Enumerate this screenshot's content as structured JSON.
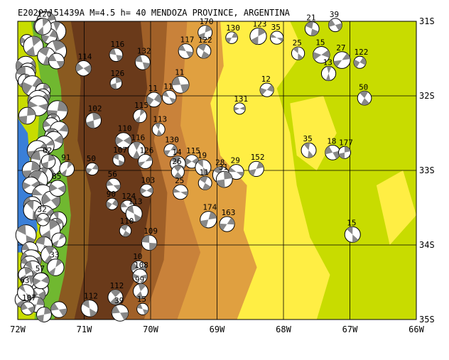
{
  "title": "E20201151439A  M=4.5  h= 40 MENDOZA PROVINCE, ARGENTINA",
  "map": {
    "lon_range": [
      -72,
      -66
    ],
    "lat_range": [
      -35,
      -31
    ],
    "lon_ticks": [
      "72W",
      "71W",
      "70W",
      "69W",
      "68W",
      "67W",
      "66W"
    ],
    "lat_ticks": [
      "31S",
      "32S",
      "33S",
      "34S",
      "35S"
    ],
    "grid": true,
    "colors": {
      "ocean": "#3a7fd8",
      "coast_green": "#70b830",
      "lowland": "#c8dc00",
      "plain": "#ffee44",
      "piedmont": "#e0a040",
      "mountain": "#a06028",
      "high_mountain": "#6a3a1a",
      "beachball_fill": "#888888"
    }
  },
  "events": [
    {
      "label": "120",
      "lon": -71.62,
      "lat": -31.07
    },
    {
      "label": "21",
      "lon": -67.57,
      "lat": -31.1
    },
    {
      "label": "39",
      "lon": -67.22,
      "lat": -31.05
    },
    {
      "label": "170",
      "lon": -69.18,
      "lat": -31.15
    },
    {
      "label": "130",
      "lon": -68.78,
      "lat": -31.22
    },
    {
      "label": "123",
      "lon": -68.38,
      "lat": -31.2
    },
    {
      "label": "35",
      "lon": -68.1,
      "lat": -31.22
    },
    {
      "label": "116",
      "lon": -70.52,
      "lat": -31.45
    },
    {
      "label": "132",
      "lon": -70.12,
      "lat": -31.55
    },
    {
      "label": "117",
      "lon": -69.47,
      "lat": -31.4
    },
    {
      "label": "122",
      "lon": -69.2,
      "lat": -31.4
    },
    {
      "label": "25",
      "lon": -67.78,
      "lat": -31.43
    },
    {
      "label": "15",
      "lon": -67.43,
      "lat": -31.45
    },
    {
      "label": "27",
      "lon": -67.12,
      "lat": -31.52
    },
    {
      "label": "122",
      "lon": -66.85,
      "lat": -31.55
    },
    {
      "label": "114",
      "lon": -71.01,
      "lat": -31.63
    },
    {
      "label": "126",
      "lon": -70.52,
      "lat": -31.83
    },
    {
      "label": "11",
      "lon": -69.55,
      "lat": -31.85
    },
    {
      "label": "13",
      "lon": -67.32,
      "lat": -31.7
    },
    {
      "label": "12",
      "lon": -68.25,
      "lat": -31.92
    },
    {
      "label": "11",
      "lon": -69.95,
      "lat": -32.05
    },
    {
      "label": "11",
      "lon": -69.72,
      "lat": -32.02
    },
    {
      "label": "50",
      "lon": -66.78,
      "lat": -32.03
    },
    {
      "label": "131",
      "lon": -68.66,
      "lat": -32.17
    },
    {
      "label": "102",
      "lon": -70.86,
      "lat": -32.33
    },
    {
      "label": "115",
      "lon": -70.16,
      "lat": -32.27
    },
    {
      "label": "113",
      "lon": -69.88,
      "lat": -32.45
    },
    {
      "label": "110",
      "lon": -70.41,
      "lat": -32.6
    },
    {
      "label": "116",
      "lon": -70.21,
      "lat": -32.73
    },
    {
      "label": "130",
      "lon": -69.7,
      "lat": -32.73
    },
    {
      "label": "107",
      "lon": -70.48,
      "lat": -32.86
    },
    {
      "label": "126",
      "lon": -70.08,
      "lat": -32.88
    },
    {
      "label": "115",
      "lon": -69.38,
      "lat": -32.88
    },
    {
      "label": "14",
      "lon": -69.59,
      "lat": -32.91
    },
    {
      "label": "19",
      "lon": -69.21,
      "lat": -32.96
    },
    {
      "label": "35",
      "lon": -67.62,
      "lat": -32.73
    },
    {
      "label": "18",
      "lon": -67.26,
      "lat": -32.76
    },
    {
      "label": "177",
      "lon": -67.08,
      "lat": -32.76
    },
    {
      "label": "62",
      "lon": -71.54,
      "lat": -32.88
    },
    {
      "label": "91",
      "lon": -71.26,
      "lat": -32.98
    },
    {
      "label": "50",
      "lon": -70.88,
      "lat": -32.98
    },
    {
      "label": "26",
      "lon": -69.59,
      "lat": -33.02
    },
    {
      "label": "28",
      "lon": -68.94,
      "lat": -33.06
    },
    {
      "label": "29",
      "lon": -68.71,
      "lat": -33.02
    },
    {
      "label": "152",
      "lon": -68.41,
      "lat": -32.98
    },
    {
      "label": "31",
      "lon": -68.89,
      "lat": -33.12
    },
    {
      "label": "11",
      "lon": -69.18,
      "lat": -33.17
    },
    {
      "label": "85",
      "lon": -71.4,
      "lat": -33.24
    },
    {
      "label": "56",
      "lon": -70.56,
      "lat": -33.2
    },
    {
      "label": "103",
      "lon": -70.06,
      "lat": -33.27
    },
    {
      "label": "25",
      "lon": -69.55,
      "lat": -33.29
    },
    {
      "label": "90",
      "lon": -70.58,
      "lat": -33.45
    },
    {
      "label": "124",
      "lon": -70.35,
      "lat": -33.49
    },
    {
      "label": "113",
      "lon": -70.25,
      "lat": -33.58
    },
    {
      "label": "32",
      "lon": -71.62,
      "lat": -33.66
    },
    {
      "label": "174",
      "lon": -69.13,
      "lat": -33.66
    },
    {
      "label": "163",
      "lon": -68.85,
      "lat": -33.72
    },
    {
      "label": "15",
      "lon": -66.96,
      "lat": -33.86
    },
    {
      "label": "110",
      "lon": -70.38,
      "lat": -33.81
    },
    {
      "label": "109",
      "lon": -70.02,
      "lat": -33.97
    },
    {
      "label": "33",
      "lon": -71.43,
      "lat": -34.3
    },
    {
      "label": "10",
      "lon": -70.18,
      "lat": -34.31
    },
    {
      "label": "108",
      "lon": -70.16,
      "lat": -34.42
    },
    {
      "label": "112",
      "lon": -70.53,
      "lat": -34.7
    },
    {
      "label": "99",
      "lon": -70.15,
      "lat": -34.62
    },
    {
      "label": "112",
      "lon": -70.92,
      "lat": -34.85
    },
    {
      "label": "39",
      "lon": -70.46,
      "lat": -34.91
    },
    {
      "label": "15",
      "lon": -70.12,
      "lat": -34.86
    },
    {
      "label": "57",
      "lon": -71.65,
      "lat": -34.48
    },
    {
      "label": "63",
      "lon": -71.88,
      "lat": -34.64
    },
    {
      "label": "107",
      "lon": -71.85,
      "lat": -34.85
    }
  ],
  "coast_cluster_count": 60
}
